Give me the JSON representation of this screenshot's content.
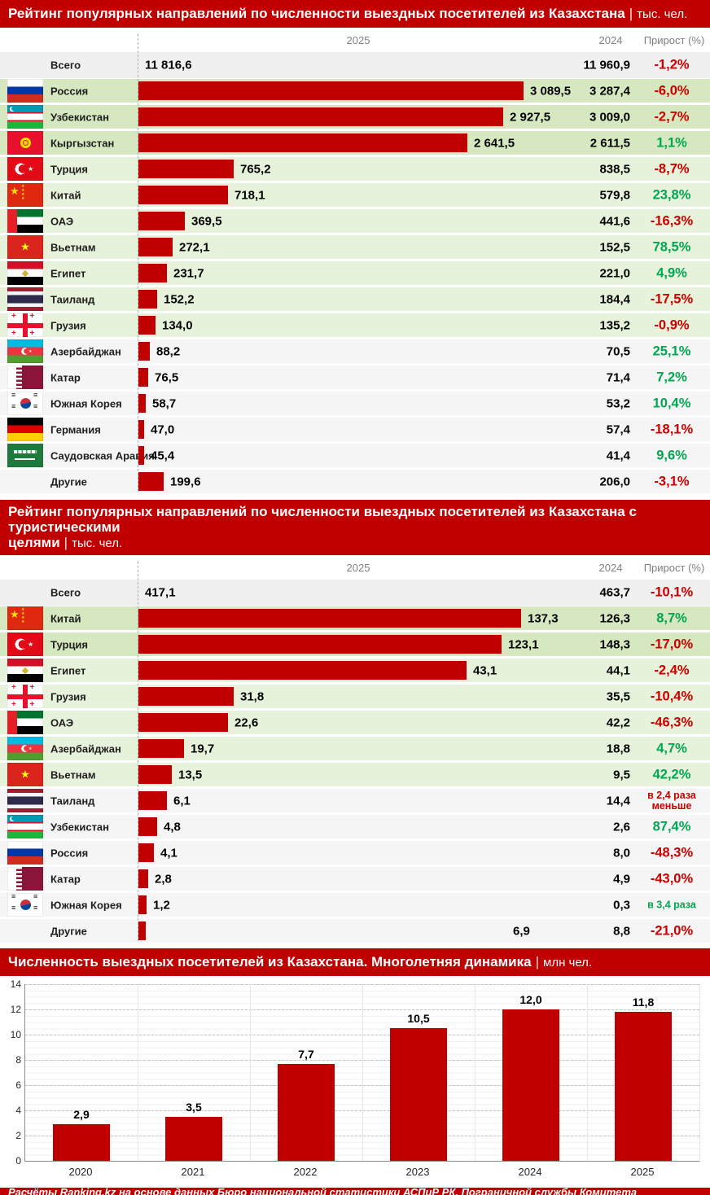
{
  "colors": {
    "accent_red": "#c00000",
    "negative": "#cc0000",
    "positive": "#00a651",
    "row_green_dark": "#d6e8bf",
    "row_green_light": "#e7f2da",
    "row_gray": "#f5f5f5"
  },
  "footer": {
    "text": "Расчёты Ranking.kz на основе данных Бюро национальной статистики АСПиР РК, Пограничной службы Комитета национальной безопасности РК"
  },
  "sections": {
    "s1": {
      "title": "Рейтинг популярных направлений по численности выездных посетителей из Казахстана",
      "unit": "тыс. чел.",
      "col_2025": "2025",
      "col_2024": "2024",
      "col_growth": "Прирост (%)",
      "total": {
        "label": "Всего",
        "v2025": "11 816,6",
        "v2024": "11 960,9",
        "growth": "-1,2%",
        "dir": "down"
      },
      "rows": [
        {
          "flag": "ru",
          "country": "Россия",
          "v2025": "3 089,5",
          "bar": 473,
          "v2024": "3 287,4",
          "growth": "-6,0%",
          "dir": "down",
          "bg": "g1"
        },
        {
          "flag": "uz",
          "country": "Узбекистан",
          "v2025": "2 927,5",
          "bar": 448,
          "v2024": "3 009,0",
          "growth": "-2,7%",
          "dir": "down",
          "bg": "g1"
        },
        {
          "flag": "kg",
          "country": "Кыргызстан",
          "v2025": "2 641,5",
          "bar": 404,
          "v2024": "2 611,5",
          "growth": "1,1%",
          "dir": "up",
          "bg": "g1"
        },
        {
          "flag": "tr",
          "country": "Турция",
          "v2025": "765,2",
          "bar": 117,
          "v2024": "838,5",
          "growth": "-8,7%",
          "dir": "down",
          "bg": "g2"
        },
        {
          "flag": "cn",
          "country": "Китай",
          "v2025": "718,1",
          "bar": 110,
          "v2024": "579,8",
          "growth": "23,8%",
          "dir": "up",
          "bg": "g2"
        },
        {
          "flag": "ae",
          "country": "ОАЭ",
          "v2025": "369,5",
          "bar": 57,
          "v2024": "441,6",
          "growth": "-16,3%",
          "dir": "down",
          "bg": "g2"
        },
        {
          "flag": "vn",
          "country": "Вьетнам",
          "v2025": "272,1",
          "bar": 42,
          "v2024": "152,5",
          "growth": "78,5%",
          "dir": "up",
          "bg": "g2"
        },
        {
          "flag": "eg",
          "country": "Египет",
          "v2025": "231,7",
          "bar": 35,
          "v2024": "221,0",
          "growth": "4,9%",
          "dir": "up",
          "bg": "g2"
        },
        {
          "flag": "th",
          "country": "Таиланд",
          "v2025": "152,2",
          "bar": 23,
          "v2024": "184,4",
          "growth": "-17,5%",
          "dir": "down",
          "bg": "g2"
        },
        {
          "flag": "ge",
          "country": "Грузия",
          "v2025": "134,0",
          "bar": 21,
          "v2024": "135,2",
          "growth": "-0,9%",
          "dir": "down",
          "bg": "g2"
        },
        {
          "flag": "az",
          "country": "Азербайджан",
          "v2025": "88,2",
          "bar": 14,
          "v2024": "70,5",
          "growth": "25,1%",
          "dir": "up",
          "bg": "gray"
        },
        {
          "flag": "qa",
          "country": "Катар",
          "v2025": "76,5",
          "bar": 12,
          "v2024": "71,4",
          "growth": "7,2%",
          "dir": "up",
          "bg": "gray"
        },
        {
          "flag": "kr",
          "country": "Южная Корея",
          "v2025": "58,7",
          "bar": 9,
          "v2024": "53,2",
          "growth": "10,4%",
          "dir": "up",
          "bg": "gray"
        },
        {
          "flag": "de",
          "country": "Германия",
          "v2025": "47,0",
          "bar": 7,
          "v2024": "57,4",
          "growth": "-18,1%",
          "dir": "down",
          "bg": "gray"
        },
        {
          "flag": "sa",
          "country": "Саудовская Аравия",
          "v2025": "45,4",
          "bar": 7,
          "v2024": "41,4",
          "growth": "9,6%",
          "dir": "up",
          "bg": "gray"
        },
        {
          "flag": null,
          "country": "Другие",
          "v2025": "199,6",
          "bar": 31,
          "v2024": "206,0",
          "growth": "-3,1%",
          "dir": "down",
          "bg": "gray"
        }
      ]
    },
    "s2": {
      "title": "Рейтинг популярных направлений по численности выездных посетителей из Казахстана с туристическими\nцелями",
      "unit": "тыс. чел.",
      "col_2025": "2025",
      "col_2024": "2024",
      "col_growth": "Прирост (%)",
      "total": {
        "label": "Всего",
        "v2025": "417,1",
        "v2024": "463,7",
        "growth": "-10,1%",
        "dir": "down"
      },
      "rows": [
        {
          "flag": "cn",
          "country": "Китай",
          "v2025": "137,3",
          "bar": 470,
          "v2024": "126,3",
          "growth": "8,7%",
          "dir": "up",
          "bg": "g1"
        },
        {
          "flag": "tr",
          "country": "Турция",
          "v2025": "123,1",
          "bar": 446,
          "v2024": "148,3",
          "growth": "-17,0%",
          "dir": "down",
          "bg": "g1"
        },
        {
          "flag": "eg",
          "country": "Египет",
          "v2025": "43,1",
          "bar": 403,
          "v2024": "44,1",
          "growth": "-2,4%",
          "dir": "down",
          "bg": "g2"
        },
        {
          "flag": "ge",
          "country": "Грузия",
          "v2025": "31,8",
          "bar": 117,
          "v2024": "35,5",
          "growth": "-10,4%",
          "dir": "down",
          "bg": "g2"
        },
        {
          "flag": "ae",
          "country": "ОАЭ",
          "v2025": "22,6",
          "bar": 110,
          "v2024": "42,2",
          "growth": "-46,3%",
          "dir": "down",
          "bg": "g2"
        },
        {
          "flag": "az",
          "country": "Азербайджан",
          "v2025": "19,7",
          "bar": 56,
          "v2024": "18,8",
          "growth": "4,7%",
          "dir": "up",
          "bg": "g2"
        },
        {
          "flag": "vn",
          "country": "Вьетнам",
          "v2025": "13,5",
          "bar": 41,
          "v2024": "9,5",
          "growth": "42,2%",
          "dir": "up",
          "bg": "g2"
        },
        {
          "flag": "th",
          "country": "Таиланд",
          "v2025": "6,1",
          "bar": 35,
          "v2024": "14,4",
          "growth": "в 2,4 раза меньше",
          "dir": "down",
          "bg": "gray"
        },
        {
          "flag": "uz",
          "country": "Узбекистан",
          "v2025": "4,8",
          "bar": 23,
          "v2024": "2,6",
          "growth": "87,4%",
          "dir": "up",
          "bg": "gray"
        },
        {
          "flag": "ru",
          "country": "Россия",
          "v2025": "4,1",
          "bar": 19,
          "v2024": "8,0",
          "growth": "-48,3%",
          "dir": "down",
          "bg": "gray"
        },
        {
          "flag": "qa",
          "country": "Катар",
          "v2025": "2,8",
          "bar": 12,
          "v2024": "4,9",
          "growth": "-43,0%",
          "dir": "down",
          "bg": "gray"
        },
        {
          "flag": "kr",
          "country": "Южная Корея",
          "v2025": "1,2",
          "bar": 10,
          "v2024": "0,3",
          "growth": "в 3,4 раза",
          "dir": "up",
          "bg": "gray"
        },
        {
          "flag": null,
          "country": "Другие",
          "v2025": "6,9",
          "bar": 9,
          "vx": 630,
          "v2024": "8,8",
          "growth": "-21,0%",
          "dir": "down",
          "bg": "gray"
        }
      ]
    },
    "s3": {
      "title": "Численность выездных посетителей из Казахстана. Многолетняя динамика",
      "unit": "млн чел."
    }
  },
  "chart_data": [
    {
      "type": "bar",
      "orientation": "horizontal",
      "title": "Рейтинг популярных направлений по численности выездных посетителей из Казахстана",
      "unit": "тыс. чел.",
      "categories": [
        "Всего",
        "Россия",
        "Узбекистан",
        "Кыргызстан",
        "Турция",
        "Китай",
        "ОАЭ",
        "Вьетнам",
        "Египет",
        "Таиланд",
        "Грузия",
        "Азербайджан",
        "Катар",
        "Южная Корея",
        "Германия",
        "Саудовская Аравия",
        "Другие"
      ],
      "series": [
        {
          "name": "2025",
          "values": [
            11816.6,
            3089.5,
            2927.5,
            2641.5,
            765.2,
            718.1,
            369.5,
            272.1,
            231.7,
            152.2,
            134.0,
            88.2,
            76.5,
            58.7,
            47.0,
            45.4,
            199.6
          ]
        },
        {
          "name": "2024",
          "values": [
            11960.9,
            3287.4,
            3009.0,
            2611.5,
            838.5,
            579.8,
            441.6,
            152.5,
            221.0,
            184.4,
            135.2,
            70.5,
            71.4,
            53.2,
            57.4,
            41.4,
            206.0
          ]
        }
      ],
      "growth": [
        "-1,2%",
        "-6,0%",
        "-2,7%",
        "1,1%",
        "-8,7%",
        "23,8%",
        "-16,3%",
        "78,5%",
        "4,9%",
        "-17,5%",
        "-0,9%",
        "25,1%",
        "7,2%",
        "10,4%",
        "-18,1%",
        "9,6%",
        "-3,1%"
      ]
    },
    {
      "type": "bar",
      "orientation": "horizontal",
      "title": "Рейтинг популярных направлений по численности выездных посетителей из Казахстана с туристическими целями",
      "unit": "тыс. чел.",
      "categories": [
        "Всего",
        "Китай",
        "Турция",
        "Египет",
        "Грузия",
        "ОАЭ",
        "Азербайджан",
        "Вьетнам",
        "Таиланд",
        "Узбекистан",
        "Россия",
        "Катар",
        "Южная Корея",
        "Другие"
      ],
      "series": [
        {
          "name": "2025",
          "values": [
            417.1,
            137.3,
            123.1,
            43.1,
            31.8,
            22.6,
            19.7,
            13.5,
            6.1,
            4.8,
            4.1,
            2.8,
            1.2,
            6.9
          ]
        },
        {
          "name": "2024",
          "values": [
            463.7,
            126.3,
            148.3,
            44.1,
            35.5,
            42.2,
            18.8,
            9.5,
            14.4,
            2.6,
            8.0,
            4.9,
            0.3,
            8.8
          ]
        }
      ],
      "growth": [
        "-10,1%",
        "8,7%",
        "-17,0%",
        "-2,4%",
        "-10,4%",
        "-46,3%",
        "4,7%",
        "42,2%",
        "в 2,4 раза меньше",
        "87,4%",
        "-48,3%",
        "-43,0%",
        "в 3,4 раза",
        "-21,0%"
      ]
    },
    {
      "type": "bar",
      "title": "Численность выездных посетителей из Казахстана. Многолетняя динамика",
      "unit": "млн чел.",
      "categories": [
        "2020",
        "2021",
        "2022",
        "2023",
        "2024",
        "2025"
      ],
      "values": [
        2.9,
        3.5,
        7.7,
        10.5,
        12.0,
        11.8
      ],
      "value_labels": [
        "2,9",
        "3,5",
        "7,7",
        "10,5",
        "12,0",
        "11,8"
      ],
      "ylim": [
        0,
        14
      ],
      "ytick_step": 2,
      "grid": true,
      "legend": false
    }
  ]
}
